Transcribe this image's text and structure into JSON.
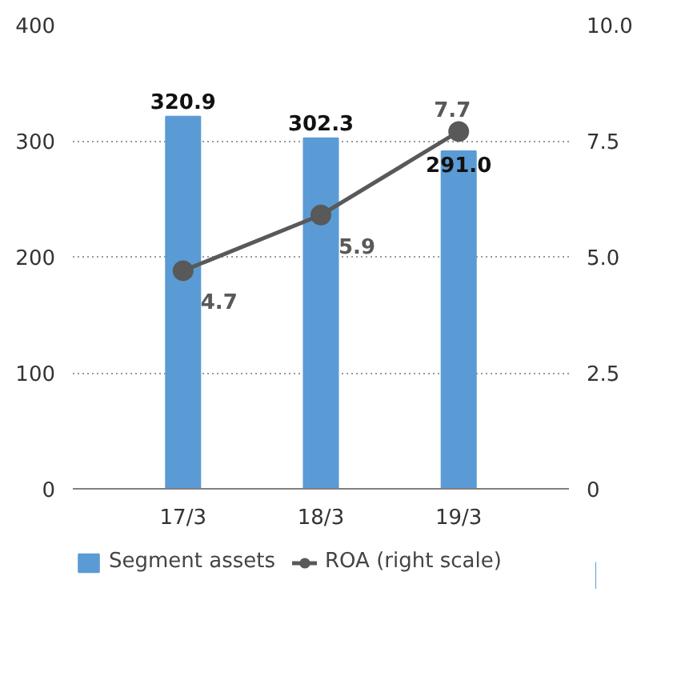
{
  "chart_data": {
    "type": "bar",
    "categories": [
      "17/3",
      "18/3",
      "19/3"
    ],
    "series": [
      {
        "name": "Segment assets",
        "color": "#5b9bd5",
        "values": [
          320.9,
          302.3,
          291.0
        ],
        "value_labels": [
          "320.9",
          "302.3",
          "291.0"
        ]
      },
      {
        "name": "ROA (right scale)",
        "type": "line",
        "axis": "y2",
        "color": "#595959",
        "values": [
          4.7,
          5.9,
          7.7
        ],
        "value_labels": [
          "4.7",
          "5.9",
          "7.7"
        ],
        "marker": "circle"
      }
    ],
    "ylim": [
      0,
      400
    ],
    "yticks": [
      0,
      100,
      200,
      300,
      400
    ],
    "y2lim": [
      0,
      10
    ],
    "y2ticks": [
      {
        "value": 0,
        "label": "0"
      },
      {
        "value": 2.5,
        "label": "2.5"
      },
      {
        "value": 5,
        "label": "5.0"
      },
      {
        "value": 7.5,
        "label": "7.5"
      },
      {
        "value": 10,
        "label": "10.0"
      }
    ],
    "grid": "y",
    "legend": "bottom left"
  }
}
